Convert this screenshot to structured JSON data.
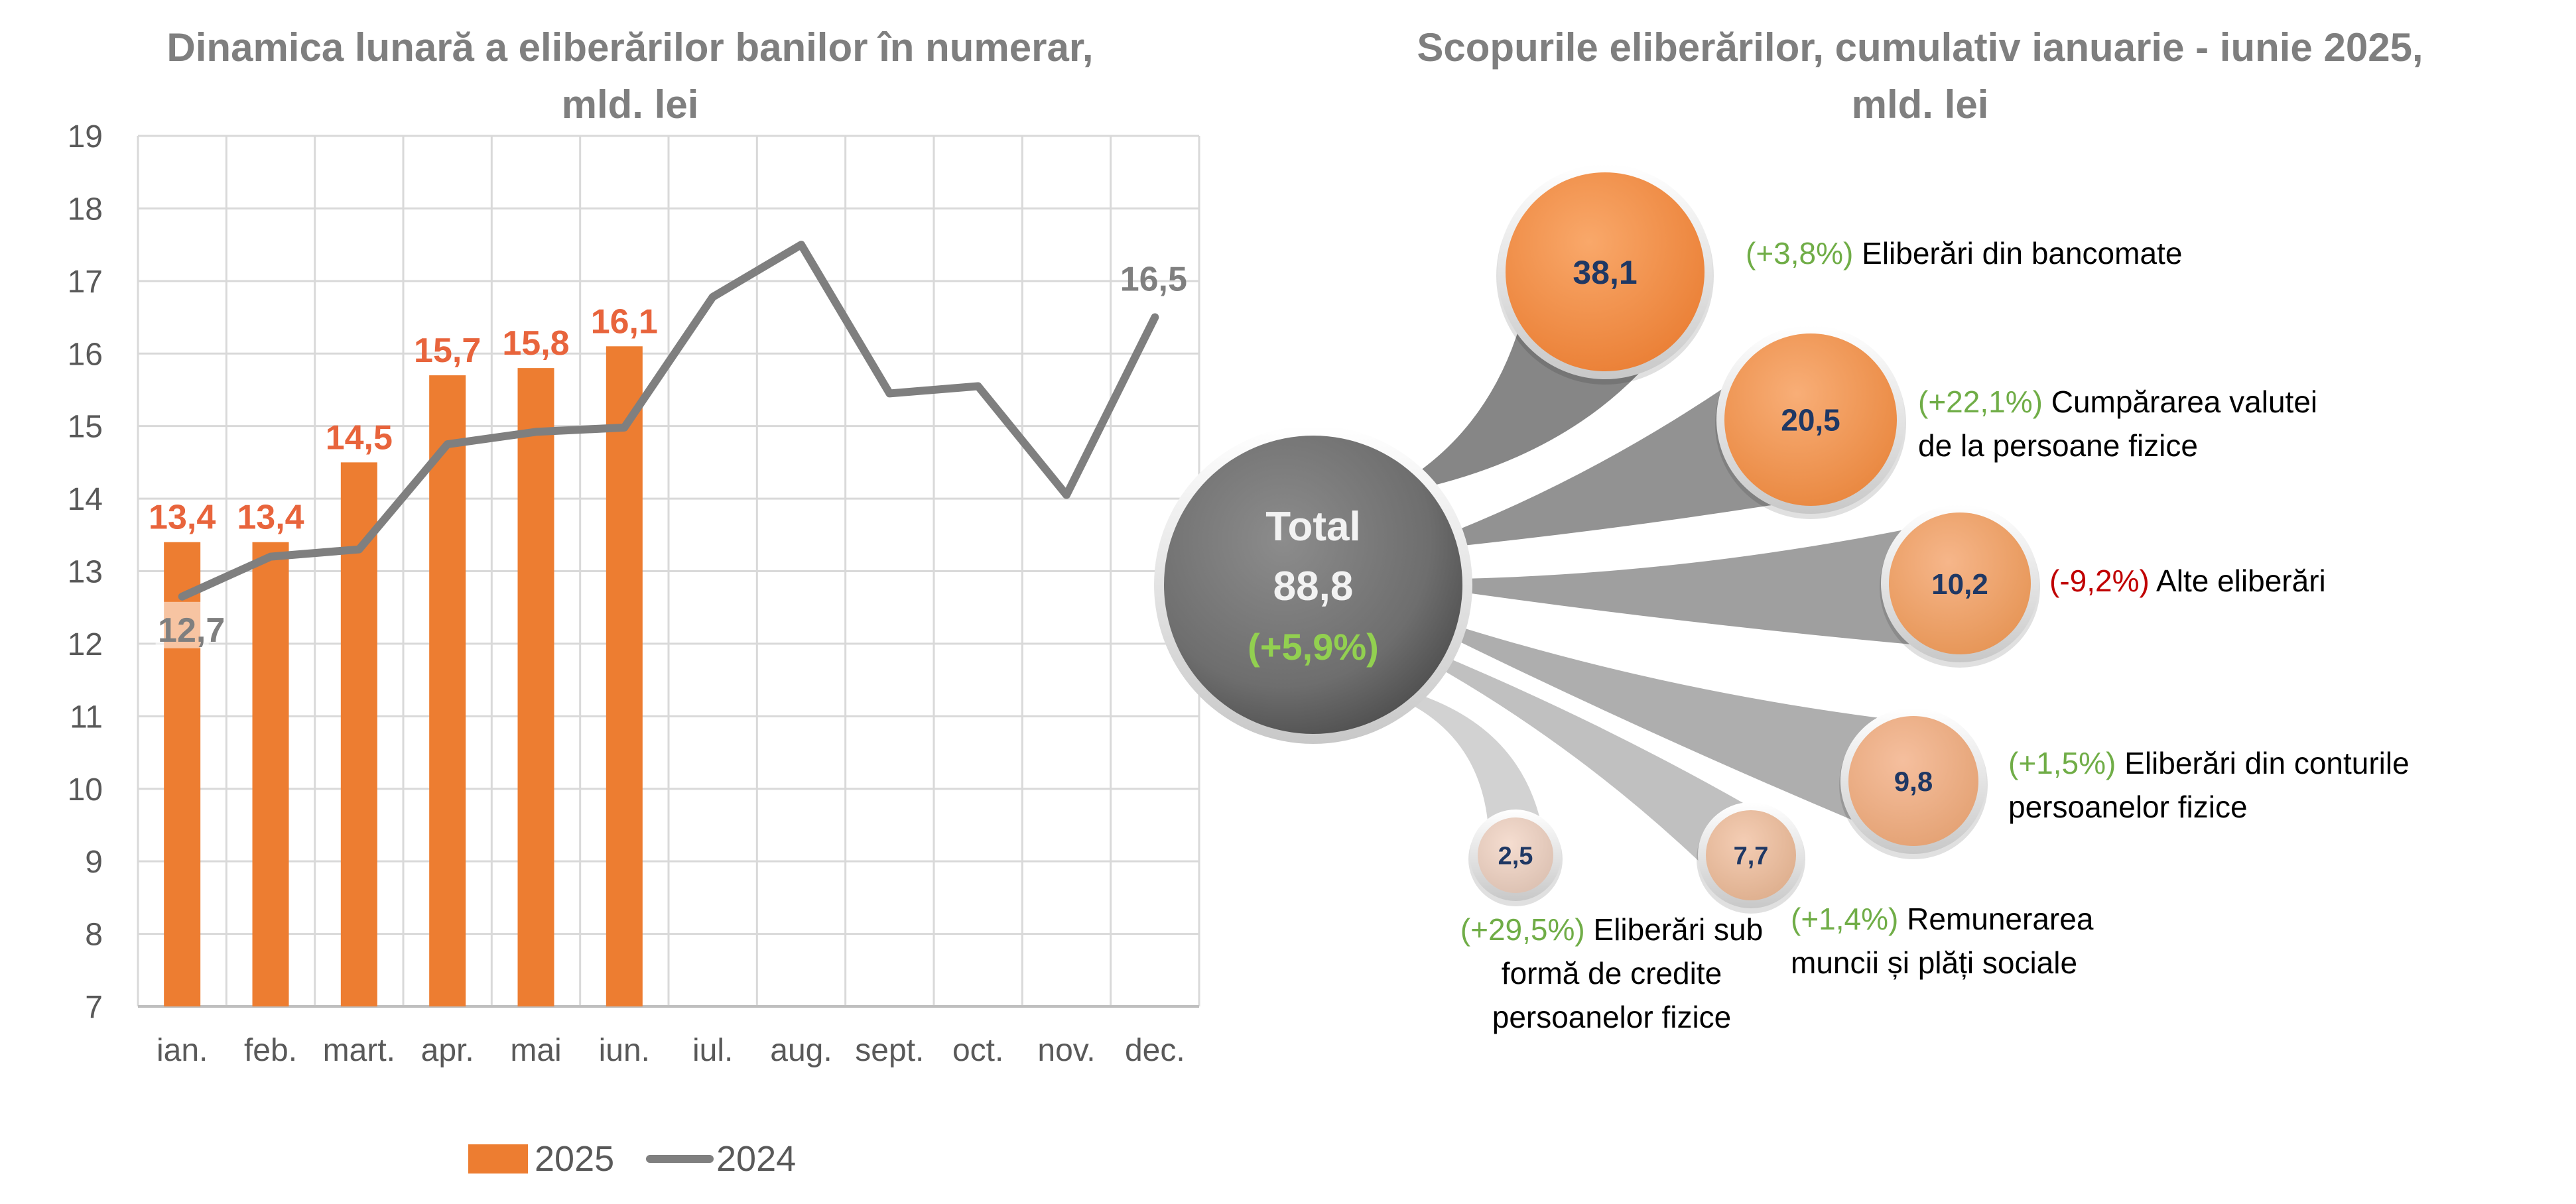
{
  "chart_data": [
    {
      "type": "bar",
      "title": "Dinamica lunară a eliberărilor banilor în numerar, mld. lei",
      "title_lines": [
        "Dinamica lunară a eliberărilor banilor în numerar,",
        "mld. lei"
      ],
      "categories": [
        "ian.",
        "feb.",
        "mart.",
        "apr.",
        "mai",
        "iun.",
        "iul.",
        "aug.",
        "sept.",
        "oct.",
        "nov.",
        "dec."
      ],
      "ylim": [
        7,
        19
      ],
      "yticks": [
        7,
        8,
        9,
        10,
        11,
        12,
        13,
        14,
        15,
        16,
        17,
        18,
        19
      ],
      "grid": true,
      "legend_position": "bottom",
      "series": [
        {
          "name": "2025",
          "kind": "bar",
          "color": "#ed7d31",
          "label_color": "#e8643c",
          "values": [
            13.4,
            13.4,
            14.5,
            15.7,
            15.8,
            16.1,
            null,
            null,
            null,
            null,
            null,
            null
          ],
          "data_labels": [
            "13,4",
            "13,4",
            "14,5",
            "15,7",
            "15,8",
            "16,1"
          ]
        },
        {
          "name": "2024",
          "kind": "line",
          "color": "#7f7f7f",
          "label_color": "#7f7f7f",
          "values": [
            12.65,
            13.2,
            13.3,
            14.75,
            14.92,
            14.98,
            16.78,
            17.5,
            15.45,
            15.55,
            14.05,
            16.5
          ],
          "data_labels": [
            {
              "index": 0,
              "text": "12,7"
            },
            {
              "index": 11,
              "text": "16,5"
            }
          ]
        }
      ]
    },
    {
      "type": "bubble",
      "title": "Scopurile eliberărilor, cumulativ ianuarie - iunie 2025, mld. lei",
      "title_lines": [
        "Scopurile eliberărilor, cumulativ ianuarie - iunie 2025,",
        "mld. lei"
      ],
      "total": {
        "label": "Total",
        "value": "88,8",
        "change": "(+5,9%)"
      },
      "items": [
        {
          "value": 38.1,
          "value_label": "38,1",
          "change": "(+3,8%)",
          "sign": "pos",
          "label_lines": [
            "Eliberări din bancomate"
          ]
        },
        {
          "value": 20.5,
          "value_label": "20,5",
          "change": "(+22,1%)",
          "sign": "pos",
          "label_lines": [
            "Cumpărarea valutei",
            "de la persoane fizice"
          ]
        },
        {
          "value": 10.2,
          "value_label": "10,2",
          "change": "(-9,2%)",
          "sign": "neg",
          "label_lines": [
            "Alte eliberări"
          ]
        },
        {
          "value": 9.8,
          "value_label": "9,8",
          "change": "(+1,5%)",
          "sign": "pos",
          "label_lines": [
            "Eliberări din conturile",
            "persoanelor fizice"
          ]
        },
        {
          "value": 7.7,
          "value_label": "7,7",
          "change": "(+1,4%)",
          "sign": "pos",
          "label_lines": [
            "Remunerarea",
            "muncii și plăți sociale"
          ]
        },
        {
          "value": 2.5,
          "value_label": "2,5",
          "change": "(+29,5%)",
          "sign": "pos",
          "label_lines": [
            "Eliberări sub",
            "formă de credite",
            "persoanelor fizice"
          ]
        }
      ]
    }
  ]
}
